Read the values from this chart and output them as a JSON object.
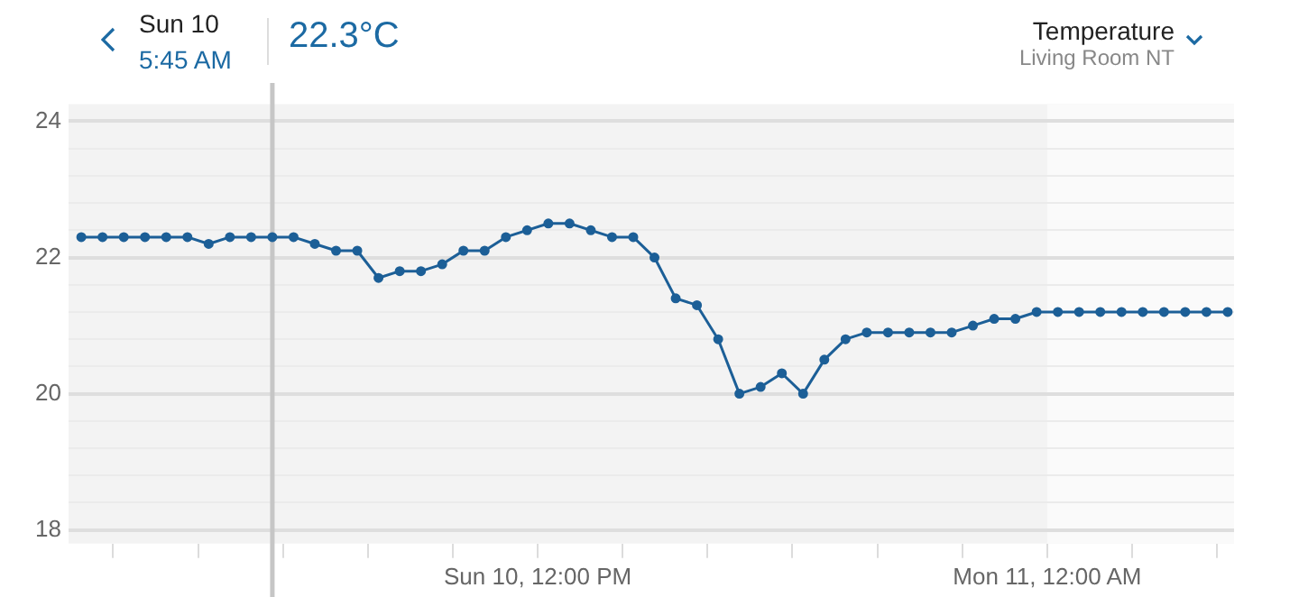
{
  "chart_data": {
    "type": "line",
    "title": "Temperature",
    "subtitle": "Living Room NT",
    "annotations": [
      "Sun 10",
      "5:45 AM",
      "22.3°C"
    ],
    "x": [
      "--03-10T01:15",
      "--03-10T01:45",
      "--03-10T02:15",
      "--03-10T02:45",
      "--03-10T03:15",
      "--03-10T03:45",
      "--03-10T04:15",
      "--03-10T04:45",
      "--03-10T05:15",
      "--03-10T05:45",
      "--03-10T06:15",
      "--03-10T06:45",
      "--03-10T07:15",
      "--03-10T07:45",
      "--03-10T08:15",
      "--03-10T08:45",
      "--03-10T09:15",
      "--03-10T09:45",
      "--03-10T10:15",
      "--03-10T10:45",
      "--03-10T11:15",
      "--03-10T11:45",
      "--03-10T12:15",
      "--03-10T12:45",
      "--03-10T13:15",
      "--03-10T13:45",
      "--03-10T14:15",
      "--03-10T14:45",
      "--03-10T15:15",
      "--03-10T15:45",
      "--03-10T16:15",
      "--03-10T16:45",
      "--03-10T17:15",
      "--03-10T17:45",
      "--03-10T18:15",
      "--03-10T18:45",
      "--03-10T19:15",
      "--03-10T19:45",
      "--03-10T20:15",
      "--03-10T20:45",
      "--03-10T21:15",
      "--03-10T21:45",
      "--03-10T22:15",
      "--03-10T22:45",
      "--03-10T23:15",
      "--03-10T23:45",
      "--03-11T00:15",
      "--03-11T00:45",
      "--03-11T01:15",
      "--03-11T01:45",
      "--03-11T02:15",
      "--03-11T02:45",
      "--03-11T03:15",
      "--03-11T03:45",
      "--03-11T04:15"
    ],
    "series": [
      {
        "color": "#1c5f97",
        "values": [
          22.3,
          22.3,
          22.3,
          22.3,
          22.3,
          22.3,
          22.2,
          22.3,
          22.3,
          22.3,
          22.3,
          22.2,
          22.1,
          22.1,
          21.7,
          21.8,
          21.8,
          21.9,
          22.1,
          22.1,
          22.3,
          22.4,
          22.5,
          22.5,
          22.4,
          22.3,
          22.3,
          22.0,
          21.4,
          21.3,
          20.8,
          20.0,
          20.1,
          20.3,
          20.0,
          20.5,
          20.8,
          20.9,
          20.9,
          20.9,
          20.9,
          20.9,
          21.0,
          21.1,
          21.1,
          21.2,
          21.2,
          21.2,
          21.2,
          21.2,
          21.2,
          21.2,
          21.2,
          21.2,
          21.2
        ]
      }
    ],
    "xlim": [
      "--03-10T00:57",
      "--03-11T04:24"
    ],
    "xticks": [
      {
        "value": "--03-10T02:00",
        "label": null
      },
      {
        "value": "--03-10T04:00",
        "label": null
      },
      {
        "value": "--03-10T06:00",
        "label": null
      },
      {
        "value": "--03-10T08:00",
        "label": null
      },
      {
        "value": "--03-10T10:00",
        "label": null
      },
      {
        "value": "--03-10T12:00",
        "label": "Sun 10, 12:00 PM"
      },
      {
        "value": "--03-10T14:00",
        "label": null
      },
      {
        "value": "--03-10T16:00",
        "label": null
      },
      {
        "value": "--03-10T18:00",
        "label": null
      },
      {
        "value": "--03-10T20:00",
        "label": null
      },
      {
        "value": "--03-10T22:00",
        "label": null
      },
      {
        "value": "--03-11T00:00",
        "label": "Mon 11, 12:00 AM"
      },
      {
        "value": "--03-11T02:00",
        "label": null
      },
      {
        "value": "--03-11T04:00",
        "label": null
      }
    ],
    "ylim": [
      17.8,
      24.25
    ],
    "yticks": [
      18,
      {
        "value": 18.4,
        "label": null
      },
      {
        "value": 18.8,
        "label": null
      },
      {
        "value": 19.2,
        "label": null
      },
      {
        "value": 19.6,
        "label": null
      },
      20,
      {
        "value": 20.4,
        "label": null
      },
      {
        "value": 20.8,
        "label": null
      },
      {
        "value": 21.2,
        "label": null
      },
      {
        "value": 21.6,
        "label": null
      },
      22,
      {
        "value": 22.4,
        "label": null
      },
      {
        "value": 22.8,
        "label": null
      },
      {
        "value": 23.2,
        "label": null
      },
      {
        "value": 23.6,
        "label": null
      },
      24
    ],
    "ref_lines": [
      {
        "axis": "x",
        "value": "--03-10T05:45",
        "color": "#c6c6c6"
      }
    ],
    "bands": [
      {
        "axis": "x",
        "from": "--03-11T00:00",
        "to": "--03-11T04:24",
        "color": "#fafafa"
      }
    ],
    "grid": "y",
    "marker": "circle",
    "line_style": "solid"
  }
}
